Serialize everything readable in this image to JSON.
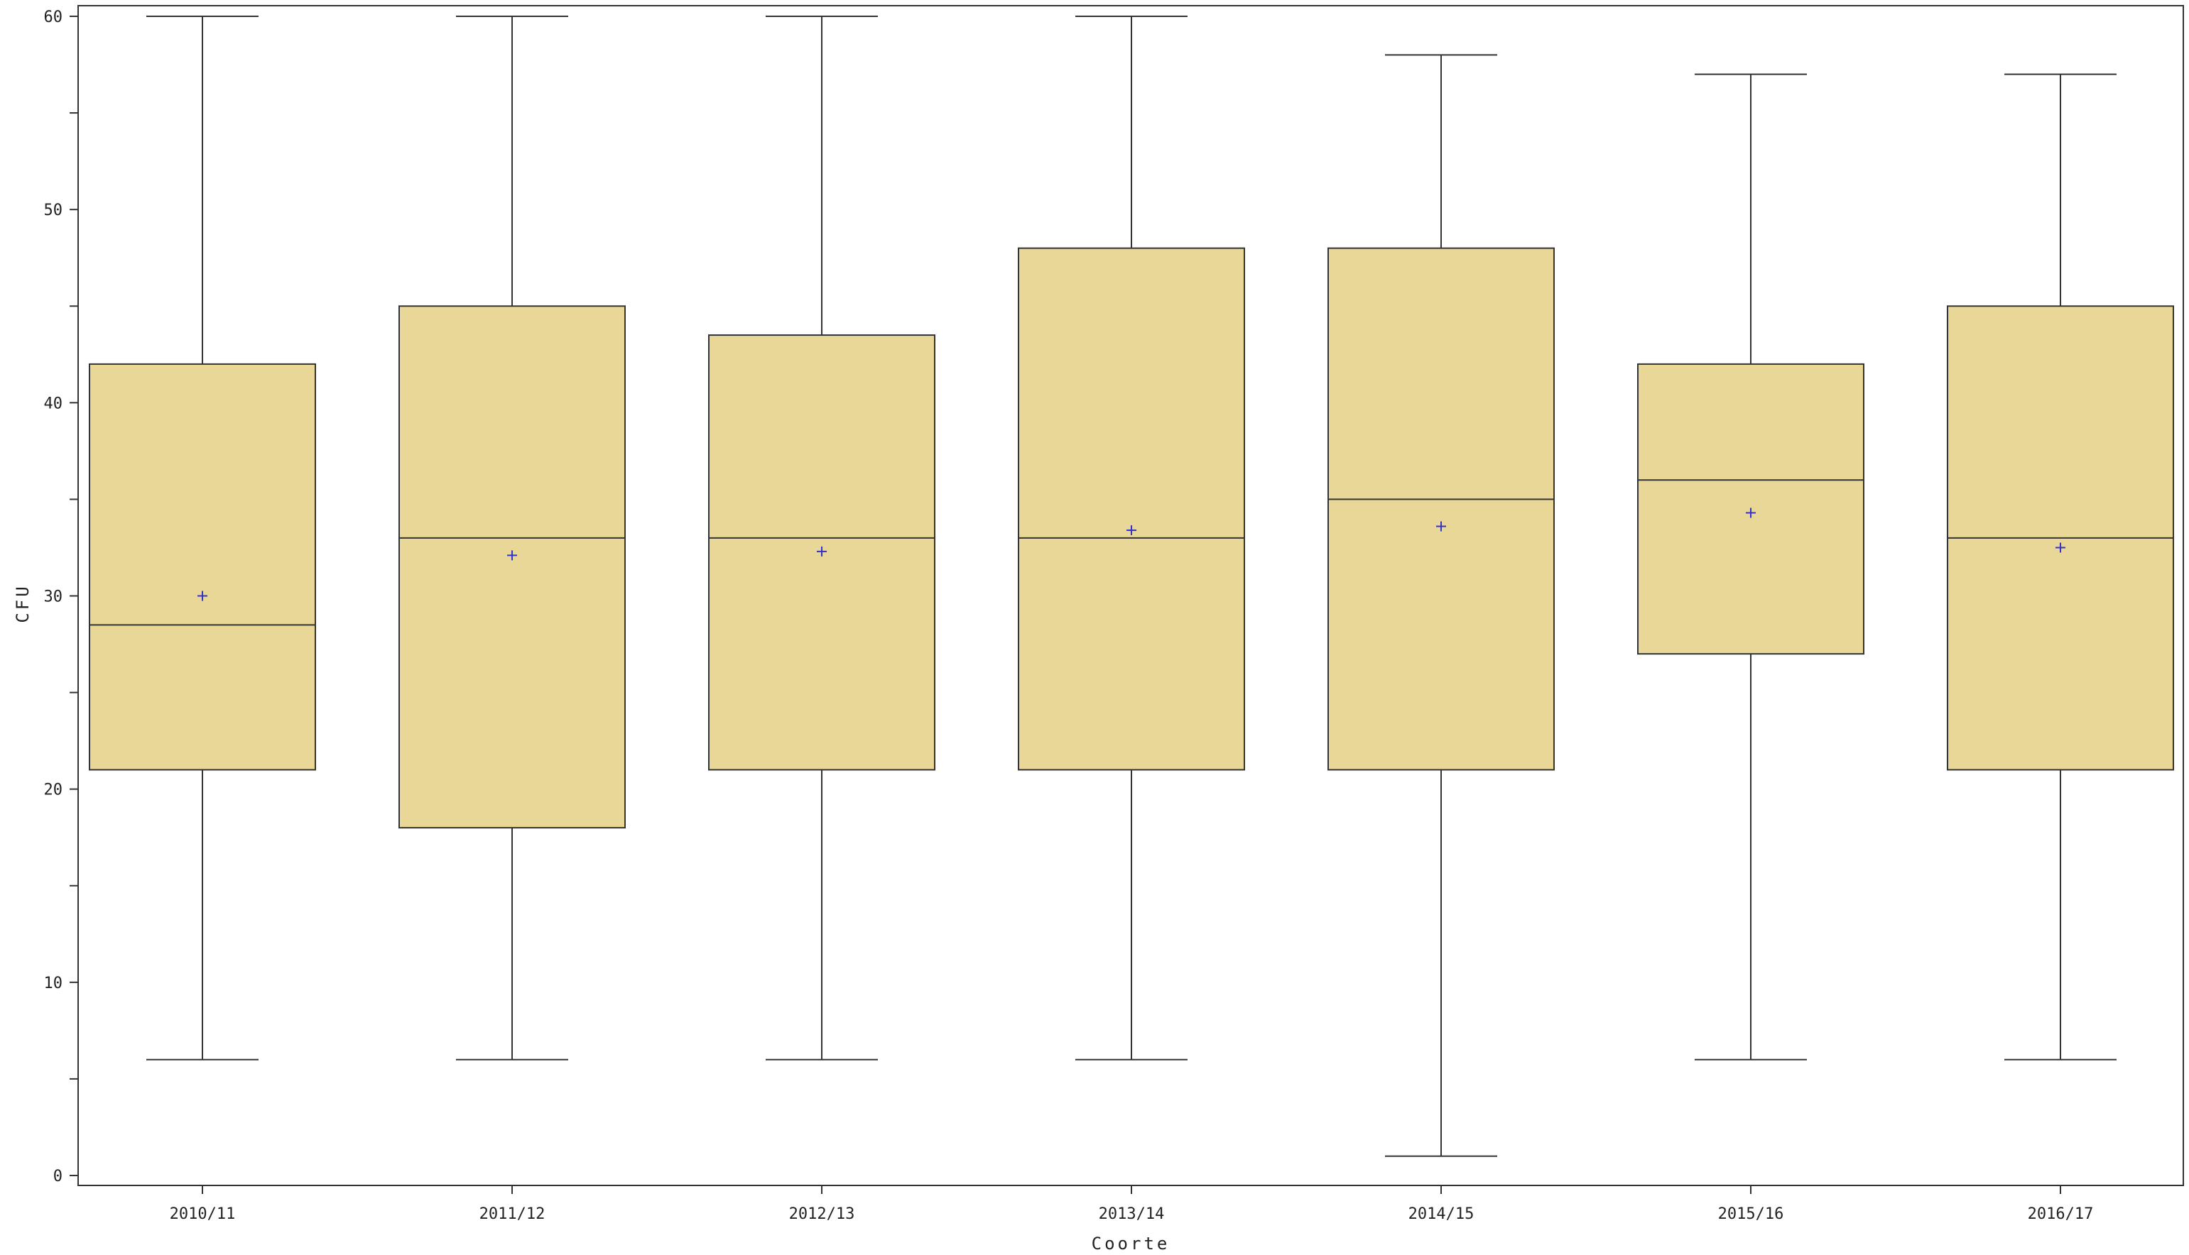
{
  "chart_data": {
    "type": "box",
    "title": "",
    "xlabel": "Coorte",
    "ylabel": "CFU",
    "ylim": [
      0,
      60
    ],
    "yticks": [
      0,
      10,
      20,
      30,
      40,
      50,
      60
    ],
    "y_minor_step": 5,
    "grid": false,
    "legend": "none",
    "categories": [
      "2010/11",
      "2011/12",
      "2012/13",
      "2013/14",
      "2014/15",
      "2015/16",
      "2016/17"
    ],
    "boxes": [
      {
        "min": 6,
        "q1": 21,
        "median": 28.5,
        "q3": 42,
        "max": 60,
        "mean": 30.0
      },
      {
        "min": 6,
        "q1": 18,
        "median": 33,
        "q3": 45,
        "max": 60,
        "mean": 32.1
      },
      {
        "min": 6,
        "q1": 21,
        "median": 33,
        "q3": 43.5,
        "max": 60,
        "mean": 32.3
      },
      {
        "min": 6,
        "q1": 21,
        "median": 33,
        "q3": 48,
        "max": 60,
        "mean": 33.4
      },
      {
        "min": 1,
        "q1": 21,
        "median": 35,
        "q3": 48,
        "max": 58,
        "mean": 33.6
      },
      {
        "min": 6,
        "q1": 27,
        "median": 36,
        "q3": 42,
        "max": 57,
        "mean": 34.3
      },
      {
        "min": 6,
        "q1": 21,
        "median": 33,
        "q3": 45,
        "max": 57,
        "mean": 32.5
      }
    ],
    "colors": {
      "box_fill": "#e8d797",
      "box_stroke": "#333333",
      "mean_marker": "#3333cc"
    }
  }
}
